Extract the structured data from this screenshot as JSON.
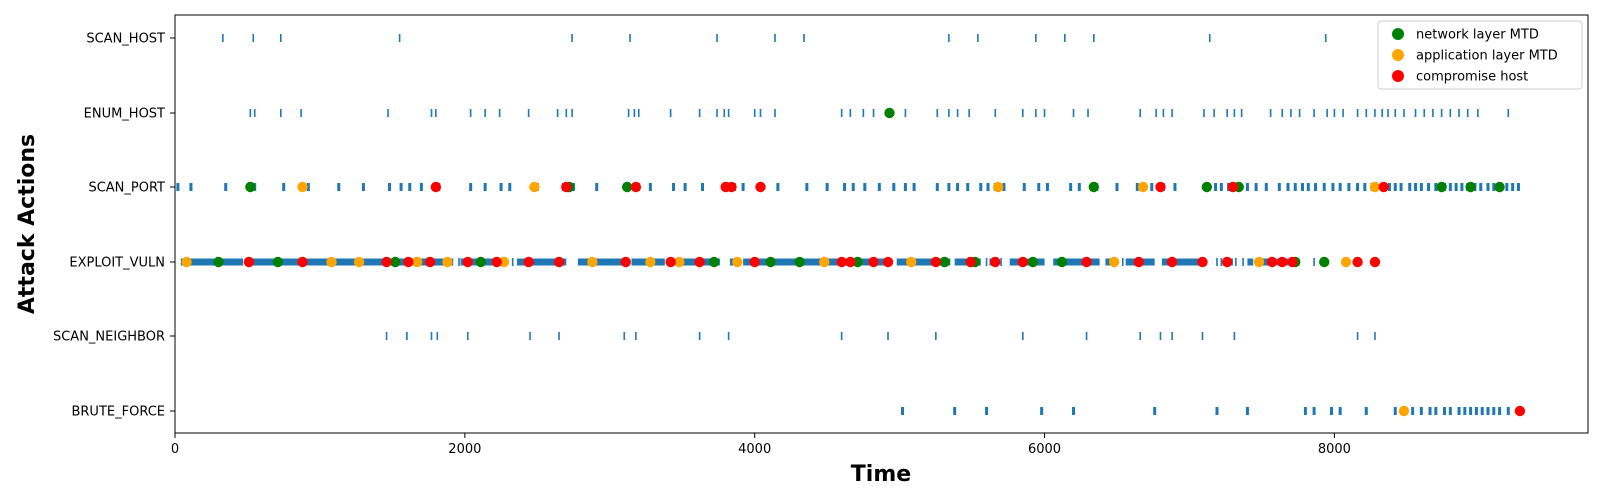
{
  "chart_data": {
    "type": "scatter",
    "title": "",
    "xlabel": "Time",
    "ylabel": "Attack Actions",
    "xlim": [
      0,
      9750
    ],
    "x_ticks": [
      0,
      2000,
      4000,
      6000,
      8000
    ],
    "categories": [
      "SCAN_HOST",
      "ENUM_HOST",
      "SCAN_PORT",
      "EXPLOIT_VULN",
      "SCAN_NEIGHBOR",
      "BRUTE_FORCE"
    ],
    "grid": false,
    "legend_position": "top-right",
    "legend": [
      {
        "label": "network layer MTD",
        "color": "#008000"
      },
      {
        "label": "application layer MTD",
        "color": "#ffa500"
      },
      {
        "label": "compromise host",
        "color": "#ff0000"
      }
    ],
    "bar_color": "#1f77b4",
    "action_bars": {
      "SCAN_HOST": [
        330,
        540,
        730,
        1550,
        2740,
        3140,
        3740,
        4140,
        4340,
        5340,
        5540,
        5940,
        6140,
        6340,
        7140,
        7940
      ],
      "ENUM_HOST": [
        520,
        550,
        730,
        870,
        1470,
        1770,
        1800,
        2040,
        2140,
        2240,
        2440,
        2640,
        2700,
        2740,
        3130,
        3170,
        3200,
        3420,
        3620,
        3740,
        3790,
        3820,
        4000,
        4040,
        4140,
        4600,
        4660,
        4750,
        4820,
        4930,
        5040,
        5260,
        5340,
        5400,
        5480,
        5660,
        5850,
        5940,
        6000,
        6200,
        6300,
        6660,
        6770,
        6820,
        6880,
        7100,
        7170,
        7260,
        7310,
        7360,
        7560,
        7640,
        7700,
        7760,
        7860,
        7950,
        8000,
        8060,
        8160,
        8220,
        8280,
        8330,
        8370,
        8420,
        8480,
        8560,
        8620,
        8680,
        8740,
        8800,
        8860,
        8920,
        8990,
        9200
      ],
      "SCAN_PORT": [
        20,
        110,
        350,
        550,
        750,
        880,
        920,
        1130,
        1300,
        1480,
        1560,
        1620,
        1700,
        1820,
        2040,
        2140,
        2250,
        2310,
        2500,
        2680,
        2750,
        2910,
        3200,
        3280,
        3440,
        3520,
        3640,
        3800,
        3860,
        3920,
        4040,
        4160,
        4360,
        4500,
        4620,
        4680,
        4760,
        4860,
        4960,
        5040,
        5100,
        5260,
        5340,
        5400,
        5470,
        5560,
        5610,
        5660,
        5720,
        5860,
        5960,
        6020,
        6180,
        6240,
        6360,
        6500,
        6640,
        6740,
        6820,
        6900,
        7180,
        7220,
        7270,
        7400,
        7460,
        7530,
        7620,
        7680,
        7730,
        7780,
        7820,
        7870,
        7930,
        7990,
        8040,
        8100,
        8160,
        8210,
        8260,
        8340,
        8380,
        8420,
        8460,
        8520,
        8560,
        8600,
        8650,
        8700,
        8760,
        8800,
        8840,
        8880,
        8920,
        8970,
        9010,
        9060,
        9100,
        9140,
        9190,
        9230,
        9270
      ],
      "EXPLOIT_VULN": [
        1960,
        2330,
        5600,
        5700,
        6540,
        7080,
        7110,
        7190,
        7220,
        7320,
        7370,
        7700,
        7860
      ],
      "SCAN_NEIGHBOR": [
        1460,
        1600,
        1770,
        1810,
        2020,
        2450,
        2650,
        3100,
        3180,
        3620,
        3820,
        4600,
        4920,
        5250,
        5850,
        6290,
        6660,
        6800,
        6880,
        7090,
        7310,
        8160,
        8280
      ],
      "BRUTE_FORCE": [
        5020,
        5380,
        5600,
        5980,
        6200,
        6760,
        7190,
        7400,
        7800,
        7860,
        7980,
        8040,
        8220,
        8420,
        8480,
        8540,
        8600,
        8660,
        8700,
        8760,
        8800,
        8860,
        8900,
        8940,
        8980,
        9020,
        9060,
        9100,
        9140,
        9200
      ]
    },
    "exploit_segments": [
      [
        40,
        470
      ],
      [
        500,
        1250
      ],
      [
        1290,
        1920
      ],
      [
        1970,
        2280
      ],
      [
        2360,
        2700
      ],
      [
        2780,
        3100
      ],
      [
        3150,
        3380
      ],
      [
        3420,
        3760
      ],
      [
        3830,
        3880
      ],
      [
        3920,
        4650
      ],
      [
        4670,
        4950
      ],
      [
        4980,
        5350
      ],
      [
        5380,
        5560
      ],
      [
        5620,
        5680
      ],
      [
        5760,
        6000
      ],
      [
        6060,
        6380
      ],
      [
        6420,
        6500
      ],
      [
        6560,
        6760
      ],
      [
        6810,
        6860
      ],
      [
        6900,
        7080
      ],
      [
        7230,
        7300
      ],
      [
        7400,
        7440
      ],
      [
        7500,
        7560
      ],
      [
        7600,
        7680
      ],
      [
        7720,
        7760
      ]
    ],
    "series": [
      {
        "name": "network layer MTD",
        "color": "#008000",
        "points": [
          {
            "x": 4930,
            "y": "ENUM_HOST"
          },
          {
            "x": 520,
            "y": "SCAN_PORT"
          },
          {
            "x": 2720,
            "y": "SCAN_PORT"
          },
          {
            "x": 3120,
            "y": "SCAN_PORT"
          },
          {
            "x": 6340,
            "y": "SCAN_PORT"
          },
          {
            "x": 7120,
            "y": "SCAN_PORT"
          },
          {
            "x": 7340,
            "y": "SCAN_PORT"
          },
          {
            "x": 8740,
            "y": "SCAN_PORT"
          },
          {
            "x": 8940,
            "y": "SCAN_PORT"
          },
          {
            "x": 9140,
            "y": "SCAN_PORT"
          },
          {
            "x": 300,
            "y": "EXPLOIT_VULN"
          },
          {
            "x": 710,
            "y": "EXPLOIT_VULN"
          },
          {
            "x": 1520,
            "y": "EXPLOIT_VULN"
          },
          {
            "x": 2110,
            "y": "EXPLOIT_VULN"
          },
          {
            "x": 3720,
            "y": "EXPLOIT_VULN"
          },
          {
            "x": 4110,
            "y": "EXPLOIT_VULN"
          },
          {
            "x": 4310,
            "y": "EXPLOIT_VULN"
          },
          {
            "x": 4710,
            "y": "EXPLOIT_VULN"
          },
          {
            "x": 5310,
            "y": "EXPLOIT_VULN"
          },
          {
            "x": 5520,
            "y": "EXPLOIT_VULN"
          },
          {
            "x": 5920,
            "y": "EXPLOIT_VULN"
          },
          {
            "x": 6120,
            "y": "EXPLOIT_VULN"
          },
          {
            "x": 7730,
            "y": "EXPLOIT_VULN"
          },
          {
            "x": 7930,
            "y": "EXPLOIT_VULN"
          }
        ]
      },
      {
        "name": "application layer MTD",
        "color": "#ffa500",
        "points": [
          {
            "x": 880,
            "y": "SCAN_PORT"
          },
          {
            "x": 2480,
            "y": "SCAN_PORT"
          },
          {
            "x": 5680,
            "y": "SCAN_PORT"
          },
          {
            "x": 6680,
            "y": "SCAN_PORT"
          },
          {
            "x": 8280,
            "y": "SCAN_PORT"
          },
          {
            "x": 80,
            "y": "EXPLOIT_VULN"
          },
          {
            "x": 1080,
            "y": "EXPLOIT_VULN"
          },
          {
            "x": 1270,
            "y": "EXPLOIT_VULN"
          },
          {
            "x": 1670,
            "y": "EXPLOIT_VULN"
          },
          {
            "x": 1880,
            "y": "EXPLOIT_VULN"
          },
          {
            "x": 2270,
            "y": "EXPLOIT_VULN"
          },
          {
            "x": 2880,
            "y": "EXPLOIT_VULN"
          },
          {
            "x": 3280,
            "y": "EXPLOIT_VULN"
          },
          {
            "x": 3480,
            "y": "EXPLOIT_VULN"
          },
          {
            "x": 3880,
            "y": "EXPLOIT_VULN"
          },
          {
            "x": 4480,
            "y": "EXPLOIT_VULN"
          },
          {
            "x": 5080,
            "y": "EXPLOIT_VULN"
          },
          {
            "x": 6480,
            "y": "EXPLOIT_VULN"
          },
          {
            "x": 7480,
            "y": "EXPLOIT_VULN"
          },
          {
            "x": 8080,
            "y": "EXPLOIT_VULN"
          },
          {
            "x": 8480,
            "y": "BRUTE_FORCE"
          }
        ]
      },
      {
        "name": "compromise host",
        "color": "#ff0000",
        "points": [
          {
            "x": 1800,
            "y": "SCAN_PORT"
          },
          {
            "x": 2700,
            "y": "SCAN_PORT"
          },
          {
            "x": 3180,
            "y": "SCAN_PORT"
          },
          {
            "x": 3800,
            "y": "SCAN_PORT"
          },
          {
            "x": 3840,
            "y": "SCAN_PORT"
          },
          {
            "x": 4040,
            "y": "SCAN_PORT"
          },
          {
            "x": 6800,
            "y": "SCAN_PORT"
          },
          {
            "x": 7300,
            "y": "SCAN_PORT"
          },
          {
            "x": 8340,
            "y": "SCAN_PORT"
          },
          {
            "x": 510,
            "y": "EXPLOIT_VULN"
          },
          {
            "x": 880,
            "y": "EXPLOIT_VULN"
          },
          {
            "x": 1460,
            "y": "EXPLOIT_VULN"
          },
          {
            "x": 1610,
            "y": "EXPLOIT_VULN"
          },
          {
            "x": 1760,
            "y": "EXPLOIT_VULN"
          },
          {
            "x": 2020,
            "y": "EXPLOIT_VULN"
          },
          {
            "x": 2220,
            "y": "EXPLOIT_VULN"
          },
          {
            "x": 2440,
            "y": "EXPLOIT_VULN"
          },
          {
            "x": 2650,
            "y": "EXPLOIT_VULN"
          },
          {
            "x": 3110,
            "y": "EXPLOIT_VULN"
          },
          {
            "x": 3420,
            "y": "EXPLOIT_VULN"
          },
          {
            "x": 3620,
            "y": "EXPLOIT_VULN"
          },
          {
            "x": 4000,
            "y": "EXPLOIT_VULN"
          },
          {
            "x": 4600,
            "y": "EXPLOIT_VULN"
          },
          {
            "x": 4660,
            "y": "EXPLOIT_VULN"
          },
          {
            "x": 4820,
            "y": "EXPLOIT_VULN"
          },
          {
            "x": 4920,
            "y": "EXPLOIT_VULN"
          },
          {
            "x": 5250,
            "y": "EXPLOIT_VULN"
          },
          {
            "x": 5490,
            "y": "EXPLOIT_VULN"
          },
          {
            "x": 5660,
            "y": "EXPLOIT_VULN"
          },
          {
            "x": 5850,
            "y": "EXPLOIT_VULN"
          },
          {
            "x": 6290,
            "y": "EXPLOIT_VULN"
          },
          {
            "x": 6650,
            "y": "EXPLOIT_VULN"
          },
          {
            "x": 6880,
            "y": "EXPLOIT_VULN"
          },
          {
            "x": 7090,
            "y": "EXPLOIT_VULN"
          },
          {
            "x": 7260,
            "y": "EXPLOIT_VULN"
          },
          {
            "x": 7570,
            "y": "EXPLOIT_VULN"
          },
          {
            "x": 7640,
            "y": "EXPLOIT_VULN"
          },
          {
            "x": 7710,
            "y": "EXPLOIT_VULN"
          },
          {
            "x": 8160,
            "y": "EXPLOIT_VULN"
          },
          {
            "x": 8280,
            "y": "EXPLOIT_VULN"
          },
          {
            "x": 9280,
            "y": "BRUTE_FORCE"
          }
        ]
      }
    ]
  }
}
